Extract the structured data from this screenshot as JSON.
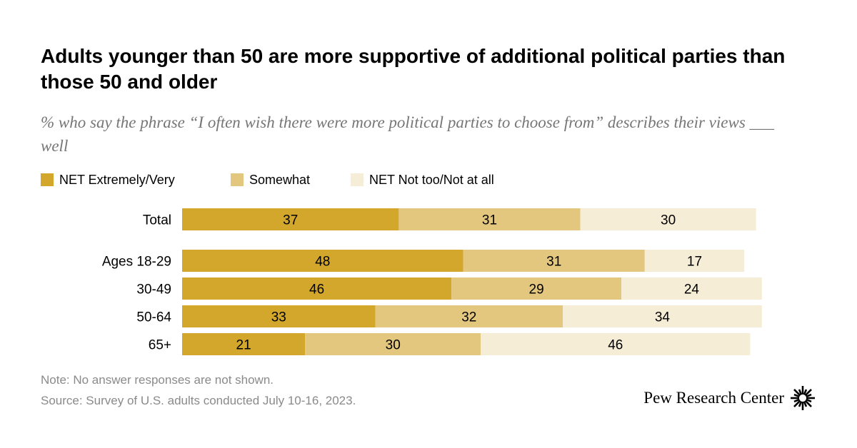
{
  "title": "Adults younger than 50 are more supportive of additional political parties than those 50 and older",
  "subtitle": "% who say the phrase “I often wish there were more political parties to choose from” describes their views ___ well",
  "legend": [
    {
      "label": "NET Extremely/Very",
      "color": "#D3A62C"
    },
    {
      "label": "Somewhat",
      "color": "#E3C77E"
    },
    {
      "label": "NET Not too/Not at all",
      "color": "#F6EDD6"
    }
  ],
  "note": "Note: No answer responses are not shown.",
  "source": "Source: Survey of U.S. adults conducted July 10-16, 2023.",
  "logo": {
    "text": "Pew Research Center",
    "icon": "pew-sunburst-icon"
  },
  "chart_data": {
    "type": "bar",
    "orientation": "horizontal",
    "stacked": true,
    "categories": [
      "Total",
      "Ages 18-29",
      "30-49",
      "50-64",
      "65+"
    ],
    "series": [
      {
        "name": "NET Extremely/Very",
        "color": "#D3A62C",
        "values": [
          37,
          48,
          46,
          33,
          21
        ]
      },
      {
        "name": "Somewhat",
        "color": "#E3C77E",
        "values": [
          31,
          31,
          29,
          32,
          30
        ]
      },
      {
        "name": "NET Not too/Not at all",
        "color": "#F6EDD6",
        "values": [
          30,
          17,
          24,
          34,
          46
        ]
      }
    ],
    "xlim": [
      0,
      100
    ],
    "grid": false,
    "legend_position": "top-left"
  }
}
